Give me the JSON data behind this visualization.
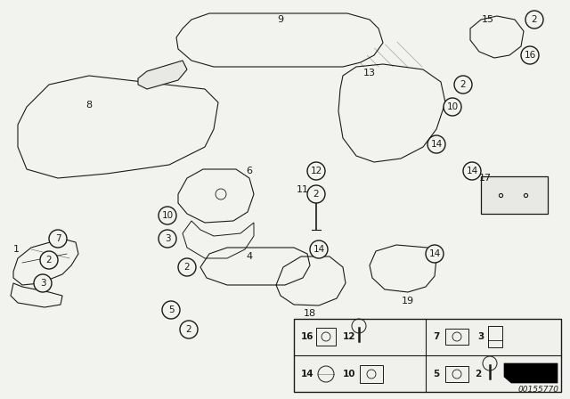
{
  "bg_color": "#f2f2ee",
  "line_color": "#1a1a1a",
  "doc_number": "00155770",
  "figsize": [
    6.4,
    4.48
  ],
  "dpi": 100
}
